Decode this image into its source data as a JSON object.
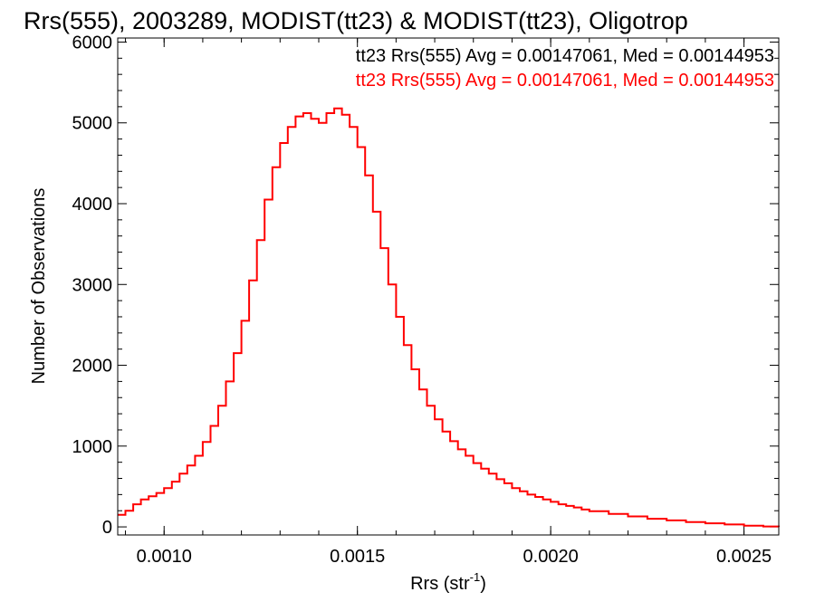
{
  "chart_data": {
    "type": "line",
    "step": true,
    "title": "Rrs(555), 2003289, MODIST(tt23) & MODIST(tt23), Oligotrop",
    "xlabel": "Rrs (str",
    "xlabel_sup": "-1",
    "xlabel_end": ")",
    "ylabel": "Number of Observations",
    "xlim": [
      0.00088,
      0.00259
    ],
    "ylim": [
      -100,
      6050
    ],
    "xticks": [
      0.001,
      0.0015,
      0.002,
      0.0025
    ],
    "xtick_labels": [
      "0.0010",
      "0.0015",
      "0.0020",
      "0.0025"
    ],
    "yticks": [
      0,
      1000,
      2000,
      3000,
      4000,
      5000,
      6000
    ],
    "ytick_labels": [
      "0",
      "1000",
      "2000",
      "3000",
      "4000",
      "5000",
      "6000"
    ],
    "grid": false,
    "annotations": [
      {
        "text": "tt23 Rrs(555) Avg = 0.00147061, Med = 0.00144953",
        "color": "#000000"
      },
      {
        "text": "tt23 Rrs(555) Avg = 0.00147061, Med = 0.00144953",
        "color": "#ff0000"
      }
    ],
    "series": [
      {
        "color": "#ff0000",
        "x": [
          0.00088,
          0.0009,
          0.00092,
          0.00094,
          0.00096,
          0.00098,
          0.001,
          0.00102,
          0.00104,
          0.00106,
          0.00108,
          0.0011,
          0.00112,
          0.00114,
          0.00116,
          0.00118,
          0.0012,
          0.00122,
          0.00124,
          0.00126,
          0.00128,
          0.0013,
          0.00132,
          0.00134,
          0.00136,
          0.00138,
          0.0014,
          0.00142,
          0.00144,
          0.00146,
          0.00148,
          0.0015,
          0.00152,
          0.00154,
          0.00156,
          0.00158,
          0.0016,
          0.00162,
          0.00164,
          0.00166,
          0.00168,
          0.0017,
          0.00172,
          0.00174,
          0.00176,
          0.00178,
          0.0018,
          0.00182,
          0.00184,
          0.00186,
          0.00188,
          0.0019,
          0.00192,
          0.00194,
          0.00196,
          0.00198,
          0.002,
          0.00202,
          0.00204,
          0.00206,
          0.00208,
          0.0021,
          0.00215,
          0.0022,
          0.00225,
          0.0023,
          0.00235,
          0.0024,
          0.00245,
          0.0025,
          0.00255,
          0.00259
        ],
        "y": [
          150,
          200,
          280,
          340,
          380,
          420,
          480,
          560,
          660,
          760,
          880,
          1050,
          1250,
          1500,
          1800,
          2150,
          2550,
          3050,
          3550,
          4050,
          4450,
          4750,
          4950,
          5080,
          5120,
          5050,
          5000,
          5120,
          5180,
          5100,
          4950,
          4700,
          4350,
          3900,
          3450,
          3000,
          2600,
          2250,
          1950,
          1700,
          1500,
          1330,
          1180,
          1060,
          960,
          880,
          790,
          720,
          660,
          590,
          540,
          480,
          440,
          400,
          370,
          340,
          310,
          280,
          260,
          240,
          215,
          195,
          160,
          130,
          100,
          80,
          60,
          45,
          30,
          15,
          5,
          0
        ]
      }
    ]
  }
}
